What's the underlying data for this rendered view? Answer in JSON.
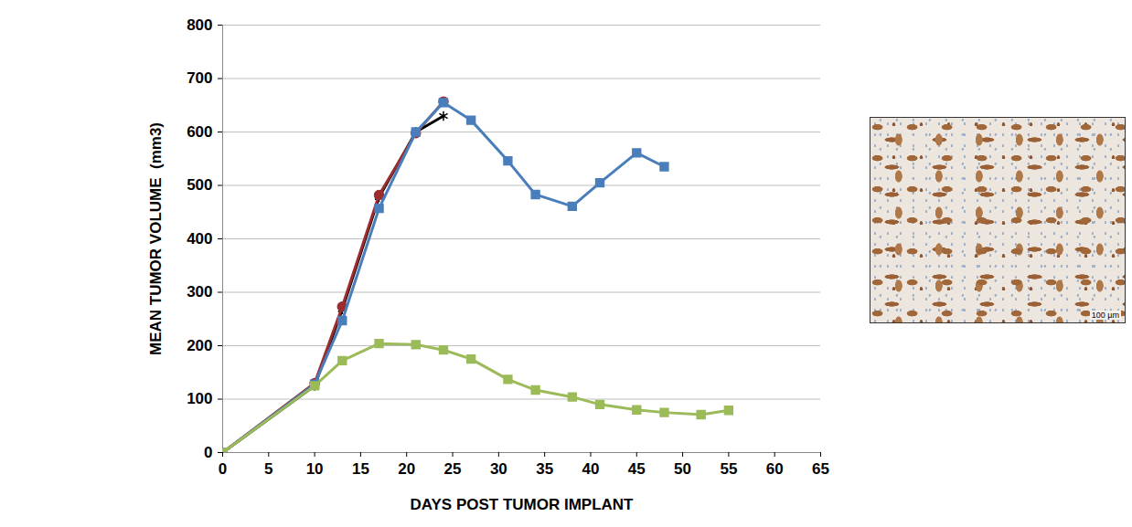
{
  "chart_data": {
    "type": "line",
    "x_label": "DAYS POST TUMOR IMPLANT",
    "y_label": "MEAN TUMOR VOLUME  (mm3)",
    "x": [
      0,
      10,
      13,
      17,
      21,
      24,
      27,
      31,
      34,
      38,
      41,
      45,
      48,
      52,
      55
    ],
    "series": [
      {
        "color": "#000000",
        "marker": "asterisk",
        "values": [
          0,
          125,
          268,
          478,
          600,
          630,
          null,
          null,
          null,
          null,
          null,
          null,
          null,
          null,
          null
        ]
      },
      {
        "color": "#9b2d30",
        "marker": "circle",
        "values": [
          0,
          130,
          273,
          482,
          598,
          657,
          null,
          null,
          null,
          null,
          null,
          null,
          null,
          null,
          null
        ]
      },
      {
        "color": "#4a7ebb",
        "marker": "square",
        "values": [
          0,
          128,
          247,
          457,
          600,
          655,
          622,
          546,
          483,
          461,
          505,
          561,
          535,
          null,
          null
        ]
      },
      {
        "color": "#9bbb59",
        "marker": "square",
        "values": [
          0,
          125,
          172,
          204,
          202,
          192,
          175,
          137,
          117,
          104,
          90,
          80,
          75,
          71,
          79
        ]
      }
    ],
    "xlim": [
      0,
      65
    ],
    "xticks": [
      0,
      5,
      10,
      15,
      20,
      25,
      30,
      35,
      40,
      45,
      50,
      55,
      60,
      65
    ],
    "ylim": [
      0,
      800
    ],
    "yticks": [
      0,
      100,
      200,
      300,
      400,
      500,
      600,
      700,
      800
    ],
    "grid": true,
    "annotations": [
      "100 µm"
    ]
  }
}
